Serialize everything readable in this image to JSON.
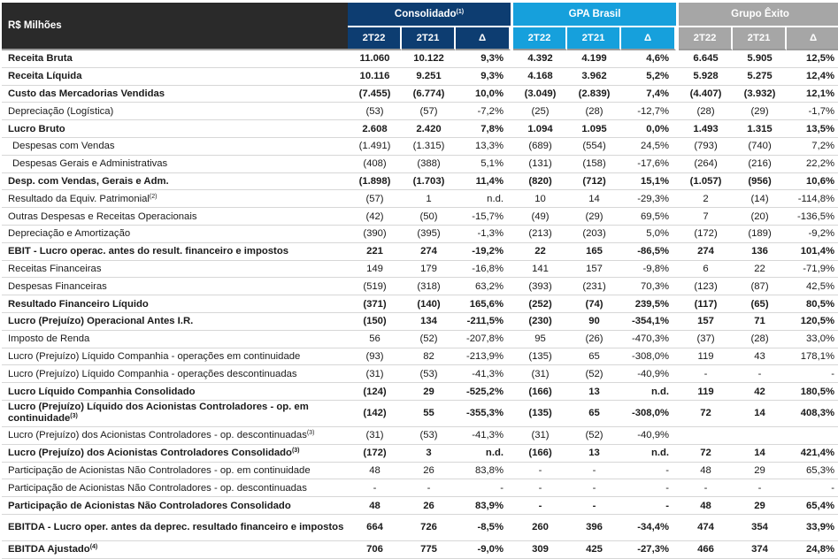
{
  "header": {
    "label": "R$ Milhões",
    "groups": [
      {
        "name": "Consolidado",
        "note": "(1)"
      },
      {
        "name": "GPA Brasil",
        "note": ""
      },
      {
        "name": "Grupo Êxito",
        "note": ""
      }
    ],
    "subcols": [
      "2T22",
      "2T21",
      "Δ"
    ]
  },
  "colors": {
    "consolidado": "#0d3d71",
    "gpa_brasil": "#16a0dc",
    "grupo_exito": "#a6a6a6",
    "label_header": "#2a2a2a"
  },
  "rows": [
    {
      "label": "Receita Bruta",
      "note": "",
      "bold": true,
      "indent": false,
      "values": [
        "11.060",
        "10.122",
        "9,3%",
        "4.392",
        "4.199",
        "4,6%",
        "6.645",
        "5.905",
        "12,5%"
      ]
    },
    {
      "label": "Receita Líquida",
      "note": "",
      "bold": true,
      "indent": false,
      "values": [
        "10.116",
        "9.251",
        "9,3%",
        "4.168",
        "3.962",
        "5,2%",
        "5.928",
        "5.275",
        "12,4%"
      ]
    },
    {
      "label": "Custo das Mercadorias Vendidas",
      "note": "",
      "bold": true,
      "indent": false,
      "values": [
        "(7.455)",
        "(6.774)",
        "10,0%",
        "(3.049)",
        "(2.839)",
        "7,4%",
        "(4.407)",
        "(3.932)",
        "12,1%"
      ]
    },
    {
      "label": "Depreciação (Logística)",
      "note": "",
      "bold": false,
      "indent": false,
      "values": [
        "(53)",
        "(57)",
        "-7,2%",
        "(25)",
        "(28)",
        "-12,7%",
        "(28)",
        "(29)",
        "-1,7%"
      ]
    },
    {
      "label": "Lucro Bruto",
      "note": "",
      "bold": true,
      "indent": false,
      "values": [
        "2.608",
        "2.420",
        "7,8%",
        "1.094",
        "1.095",
        "0,0%",
        "1.493",
        "1.315",
        "13,5%"
      ]
    },
    {
      "label": "Despesas com Vendas",
      "note": "",
      "bold": false,
      "indent": true,
      "values": [
        "(1.491)",
        "(1.315)",
        "13,3%",
        "(689)",
        "(554)",
        "24,5%",
        "(793)",
        "(740)",
        "7,2%"
      ]
    },
    {
      "label": "Despesas Gerais e Administrativas",
      "note": "",
      "bold": false,
      "indent": true,
      "values": [
        "(408)",
        "(388)",
        "5,1%",
        "(131)",
        "(158)",
        "-17,6%",
        "(264)",
        "(216)",
        "22,2%"
      ]
    },
    {
      "label": "Desp. com Vendas, Gerais e Adm.",
      "note": "",
      "bold": true,
      "indent": false,
      "values": [
        "(1.898)",
        "(1.703)",
        "11,4%",
        "(820)",
        "(712)",
        "15,1%",
        "(1.057)",
        "(956)",
        "10,6%"
      ]
    },
    {
      "label": "Resultado da Equiv. Patrimonial",
      "note": "(2)",
      "bold": false,
      "indent": false,
      "values": [
        "(57)",
        "1",
        "n.d.",
        "10",
        "14",
        "-29,3%",
        "2",
        "(14)",
        "-114,8%"
      ]
    },
    {
      "label": "Outras Despesas e Receitas Operacionais",
      "note": "",
      "bold": false,
      "indent": false,
      "values": [
        "(42)",
        "(50)",
        "-15,7%",
        "(49)",
        "(29)",
        "69,5%",
        "7",
        "(20)",
        "-136,5%"
      ]
    },
    {
      "label": "Depreciação e Amortização",
      "note": "",
      "bold": false,
      "indent": false,
      "values": [
        "(390)",
        "(395)",
        "-1,3%",
        "(213)",
        "(203)",
        "5,0%",
        "(172)",
        "(189)",
        "-9,2%"
      ]
    },
    {
      "label": "EBIT - Lucro operac. antes do result. financeiro e impostos",
      "note": "",
      "bold": true,
      "indent": false,
      "values": [
        "221",
        "274",
        "-19,2%",
        "22",
        "165",
        "-86,5%",
        "274",
        "136",
        "101,4%"
      ]
    },
    {
      "label": "Receitas Financeiras",
      "note": "",
      "bold": false,
      "indent": false,
      "values": [
        "149",
        "179",
        "-16,8%",
        "141",
        "157",
        "-9,8%",
        "6",
        "22",
        "-71,9%"
      ]
    },
    {
      "label": "Despesas Financeiras",
      "note": "",
      "bold": false,
      "indent": false,
      "values": [
        "(519)",
        "(318)",
        "63,2%",
        "(393)",
        "(231)",
        "70,3%",
        "(123)",
        "(87)",
        "42,5%"
      ]
    },
    {
      "label": "Resultado Financeiro Líquido",
      "note": "",
      "bold": true,
      "indent": false,
      "values": [
        "(371)",
        "(140)",
        "165,6%",
        "(252)",
        "(74)",
        "239,5%",
        "(117)",
        "(65)",
        "80,5%"
      ]
    },
    {
      "label": "Lucro (Prejuízo) Operacional Antes I.R.",
      "note": "",
      "bold": true,
      "indent": false,
      "values": [
        "(150)",
        "134",
        "-211,5%",
        "(230)",
        "90",
        "-354,1%",
        "157",
        "71",
        "120,5%"
      ]
    },
    {
      "label": "Imposto de Renda",
      "note": "",
      "bold": false,
      "indent": false,
      "values": [
        "56",
        "(52)",
        "-207,8%",
        "95",
        "(26)",
        "-470,3%",
        "(37)",
        "(28)",
        "33,0%"
      ]
    },
    {
      "label": "Lucro (Prejuízo) Líquido Companhia - operações em continuidade",
      "note": "",
      "bold": false,
      "indent": false,
      "values": [
        "(93)",
        "82",
        "-213,9%",
        "(135)",
        "65",
        "-308,0%",
        "119",
        "43",
        "178,1%"
      ]
    },
    {
      "label": "Lucro (Prejuízo) Líquido Companhia - operações descontinuadas",
      "note": "",
      "bold": false,
      "indent": false,
      "values": [
        "(31)",
        "(53)",
        "-41,3%",
        "(31)",
        "(52)",
        "-40,9%",
        "-",
        "-",
        "-"
      ]
    },
    {
      "label": "Lucro Líquido Companhia Consolidado",
      "note": "",
      "bold": true,
      "indent": false,
      "values": [
        "(124)",
        "29",
        "-525,2%",
        "(166)",
        "13",
        "n.d.",
        "119",
        "42",
        "180,5%"
      ]
    },
    {
      "label": "Lucro (Prejuízo) Líquido dos Acionistas Controladores - op. em continuidade",
      "note": "(3)",
      "bold": true,
      "indent": false,
      "tall": true,
      "values": [
        "(142)",
        "55",
        "-355,3%",
        "(135)",
        "65",
        "-308,0%",
        "72",
        "14",
        "408,3%"
      ]
    },
    {
      "label": "Lucro (Prejuízo) dos Acionistas Controladores - op. descontinuadas",
      "note": "(3)",
      "bold": false,
      "indent": false,
      "values": [
        "(31)",
        "(53)",
        "-41,3%",
        "(31)",
        "(52)",
        "-40,9%",
        "",
        "",
        ""
      ]
    },
    {
      "label": "Lucro (Prejuízo) dos Acionistas Controladores Consolidado",
      "note": "(3)",
      "bold": true,
      "indent": false,
      "values": [
        "(172)",
        "3",
        "n.d.",
        "(166)",
        "13",
        "n.d.",
        "72",
        "14",
        "421,4%"
      ]
    },
    {
      "label": "Participação de Acionistas Não Controladores - op. em continuidade",
      "note": "",
      "bold": false,
      "indent": false,
      "values": [
        "48",
        "26",
        "83,8%",
        "-",
        "-",
        "-",
        "48",
        "29",
        "65,3%"
      ]
    },
    {
      "label": "Participação de Acionistas Não Controladores - op. descontinuadas",
      "note": "",
      "bold": false,
      "indent": false,
      "values": [
        "-",
        "-",
        "-",
        "-",
        "-",
        "-",
        "-",
        "-",
        "-"
      ]
    },
    {
      "label": "Participação de Acionistas Não Controladores Consolidado",
      "note": "",
      "bold": true,
      "indent": false,
      "values": [
        "48",
        "26",
        "83,9%",
        "-",
        "-",
        "-",
        "48",
        "29",
        "65,4%"
      ]
    },
    {
      "label": "EBITDA - Lucro oper. antes da deprec. resultado financeiro e impostos",
      "note": "",
      "bold": true,
      "indent": false,
      "tall": true,
      "values": [
        "664",
        "726",
        "-8,5%",
        "260",
        "396",
        "-34,4%",
        "474",
        "354",
        "33,9%"
      ]
    },
    {
      "label": "EBITDA Ajustado",
      "note": "(4)",
      "bold": true,
      "indent": false,
      "values": [
        "706",
        "775",
        "-9,0%",
        "309",
        "425",
        "-27,3%",
        "466",
        "374",
        "24,8%"
      ]
    }
  ]
}
